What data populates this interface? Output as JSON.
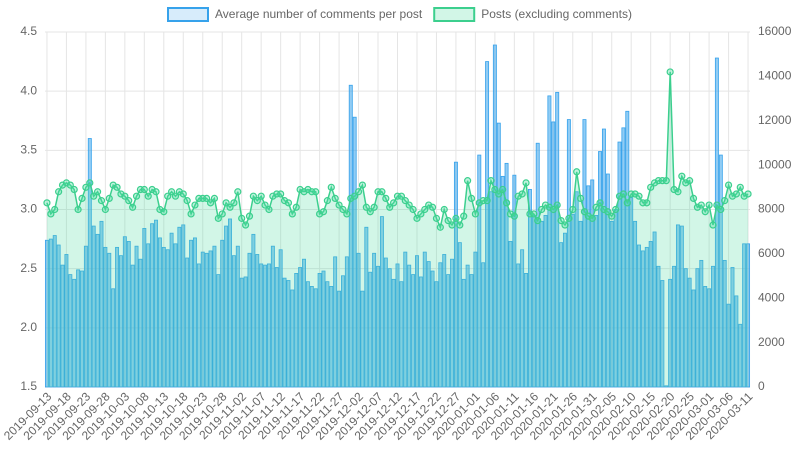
{
  "chart_data": {
    "type": "bar",
    "categories": [
      "2019-09-13",
      null,
      null,
      null,
      null,
      "2019-09-18",
      null,
      null,
      null,
      null,
      "2019-09-23",
      null,
      null,
      null,
      null,
      "2019-09-28",
      null,
      null,
      null,
      null,
      "2019-10-03",
      null,
      null,
      null,
      null,
      "2019-10-08",
      null,
      null,
      null,
      null,
      "2019-10-13",
      null,
      null,
      null,
      null,
      "2019-10-18",
      null,
      null,
      null,
      null,
      "2019-10-23",
      null,
      null,
      null,
      null,
      "2019-10-28",
      null,
      null,
      null,
      null,
      "2019-11-02",
      null,
      null,
      null,
      null,
      "2019-11-07",
      null,
      null,
      null,
      null,
      "2019-11-12",
      null,
      null,
      null,
      null,
      "2019-11-17",
      null,
      null,
      null,
      null,
      "2019-11-22",
      null,
      null,
      null,
      null,
      "2019-11-27",
      null,
      null,
      null,
      null,
      "2019-12-02",
      null,
      null,
      null,
      null,
      "2019-12-07",
      null,
      null,
      null,
      null,
      "2019-12-12",
      null,
      null,
      null,
      null,
      "2019-12-17",
      null,
      null,
      null,
      null,
      "2019-12-22",
      null,
      null,
      null,
      null,
      "2019-12-27",
      null,
      null,
      null,
      null,
      "2020-01-01",
      null,
      null,
      null,
      null,
      "2020-01-06",
      null,
      null,
      null,
      null,
      "2020-01-11",
      null,
      null,
      null,
      null,
      "2020-01-16",
      null,
      null,
      null,
      null,
      "2020-01-21",
      null,
      null,
      null,
      null,
      "2020-01-26",
      null,
      null,
      null,
      null,
      "2020-01-31",
      null,
      null,
      null,
      null,
      "2020-02-05",
      null,
      null,
      null,
      null,
      "2020-02-10",
      null,
      null,
      null,
      null,
      "2020-02-15",
      null,
      null,
      null,
      null,
      "2020-02-20",
      null,
      null,
      null,
      null,
      "2020-02-25",
      null,
      null,
      null,
      null,
      "2020-03-01",
      null,
      null,
      null,
      null,
      "2020-03-06",
      null,
      null,
      null,
      null,
      "2020-03-11"
    ],
    "series": [
      {
        "name": "Average number of comments per post",
        "type": "bar",
        "axis": "y",
        "color": "#36a2eb",
        "fill": "rgba(54,162,235,0.55)",
        "legend_fill": "rgba(54,162,235,0.2)",
        "values": [
          2.74,
          2.75,
          2.78,
          2.7,
          2.53,
          2.62,
          2.45,
          2.41,
          2.49,
          2.48,
          2.69,
          3.6,
          2.86,
          2.79,
          2.9,
          2.68,
          2.63,
          2.33,
          2.68,
          2.61,
          2.77,
          2.73,
          2.53,
          2.69,
          2.58,
          2.84,
          2.71,
          2.88,
          2.91,
          2.76,
          2.68,
          2.66,
          2.8,
          2.71,
          2.85,
          2.87,
          2.59,
          2.74,
          2.76,
          2.54,
          2.64,
          2.63,
          2.65,
          2.69,
          2.45,
          2.74,
          2.86,
          2.92,
          2.61,
          2.69,
          2.42,
          2.43,
          2.63,
          2.79,
          2.62,
          2.54,
          2.53,
          2.54,
          2.69,
          2.51,
          2.66,
          2.42,
          2.4,
          2.32,
          2.46,
          2.51,
          2.58,
          2.39,
          2.35,
          2.33,
          2.46,
          2.48,
          2.39,
          2.35,
          2.6,
          2.31,
          2.44,
          2.6,
          4.05,
          3.78,
          2.63,
          2.31,
          2.85,
          2.47,
          2.63,
          2.52,
          2.94,
          2.59,
          2.5,
          2.41,
          2.54,
          2.39,
          2.64,
          2.53,
          2.45,
          2.61,
          2.43,
          2.64,
          2.56,
          2.48,
          2.39,
          2.55,
          2.62,
          2.45,
          2.58,
          3.4,
          2.72,
          2.41,
          2.53,
          2.45,
          2.64,
          3.46,
          2.55,
          4.25,
          3.15,
          4.39,
          3.73,
          3.28,
          3.39,
          2.73,
          3.29,
          2.54,
          2.66,
          2.46,
          3.17,
          2.95,
          3.56,
          2.9,
          2.95,
          3.96,
          3.74,
          3.99,
          2.72,
          2.8,
          3.76,
          2.96,
          3.15,
          2.9,
          3.76,
          3.2,
          3.25,
          2.95,
          3.49,
          3.68,
          3.3,
          2.9,
          3.0,
          3.57,
          3.69,
          3.83,
          3.1,
          2.9,
          2.7,
          2.65,
          2.68,
          2.73,
          2.81,
          2.52,
          2.4,
          1.51,
          2.41,
          2.52,
          2.87,
          2.86,
          2.5,
          2.42,
          2.32,
          2.5,
          2.57,
          2.35,
          2.33,
          2.52,
          4.28,
          3.46,
          2.57,
          2.2,
          2.51,
          2.27,
          2.03,
          2.71,
          2.71
        ]
      },
      {
        "name": "Posts (excluding comments)",
        "type": "line",
        "axis": "y2",
        "color": "#3ccf8e",
        "fill": "rgba(75,220,160,0.25)",
        "legend_fill": "rgba(75,220,160,0.25)",
        "values": [
          8300,
          7800,
          8000,
          8800,
          9100,
          9200,
          9100,
          8900,
          8000,
          8500,
          9000,
          9200,
          8600,
          8800,
          8400,
          8000,
          8500,
          9100,
          9000,
          8700,
          8600,
          8400,
          8100,
          8600,
          8900,
          8900,
          8600,
          8900,
          8800,
          8000,
          7900,
          8600,
          8800,
          8600,
          8800,
          8700,
          8400,
          7800,
          8200,
          8500,
          8500,
          8500,
          8300,
          8500,
          7600,
          7800,
          8300,
          8100,
          8300,
          8800,
          7600,
          7300,
          7700,
          8600,
          8400,
          8600,
          8200,
          8000,
          8600,
          8700,
          8700,
          8400,
          8300,
          7800,
          8100,
          8900,
          8800,
          8900,
          8800,
          8800,
          7800,
          7900,
          8400,
          9000,
          8500,
          8200,
          8000,
          7800,
          8500,
          8600,
          8800,
          9100,
          8100,
          7900,
          8100,
          8800,
          8800,
          8500,
          8100,
          8300,
          8600,
          8600,
          8400,
          8200,
          8000,
          7600,
          7800,
          8000,
          8200,
          8100,
          7600,
          7200,
          8000,
          7500,
          7300,
          7600,
          7300,
          7700,
          9300,
          8500,
          7800,
          8300,
          8400,
          8400,
          9300,
          8900,
          8700,
          8900,
          8300,
          7800,
          7700,
          8600,
          8700,
          9200,
          7800,
          7800,
          7500,
          8000,
          8200,
          8100,
          8000,
          8200,
          7500,
          7300,
          7600,
          8000,
          9700,
          8500,
          7900,
          7700,
          7600,
          8100,
          8300,
          8000,
          7900,
          7700,
          8000,
          8600,
          8700,
          8300,
          8700,
          8700,
          8600,
          8300,
          8300,
          9000,
          9200,
          9300,
          9300,
          9300,
          14200,
          8900,
          8800,
          9500,
          9200,
          9300,
          8500,
          8100,
          8200,
          7900,
          8200,
          7300,
          8200,
          8000,
          8400,
          9100,
          8600,
          8700,
          9000,
          8600,
          8700
        ]
      }
    ],
    "ylim": [
      1.5,
      4.5
    ],
    "yticks": [
      1.5,
      {
        "value": 2,
        "label": "2.0"
      },
      2.5,
      {
        "value": 3,
        "label": "3.0"
      },
      3.5,
      {
        "value": 4,
        "label": "4.0"
      },
      4.5
    ],
    "y2lim": [
      0,
      16000
    ],
    "y2ticks": [
      0,
      2000,
      4000,
      6000,
      8000,
      10000,
      12000,
      14000,
      16000
    ],
    "grid": true,
    "legend": "top"
  }
}
